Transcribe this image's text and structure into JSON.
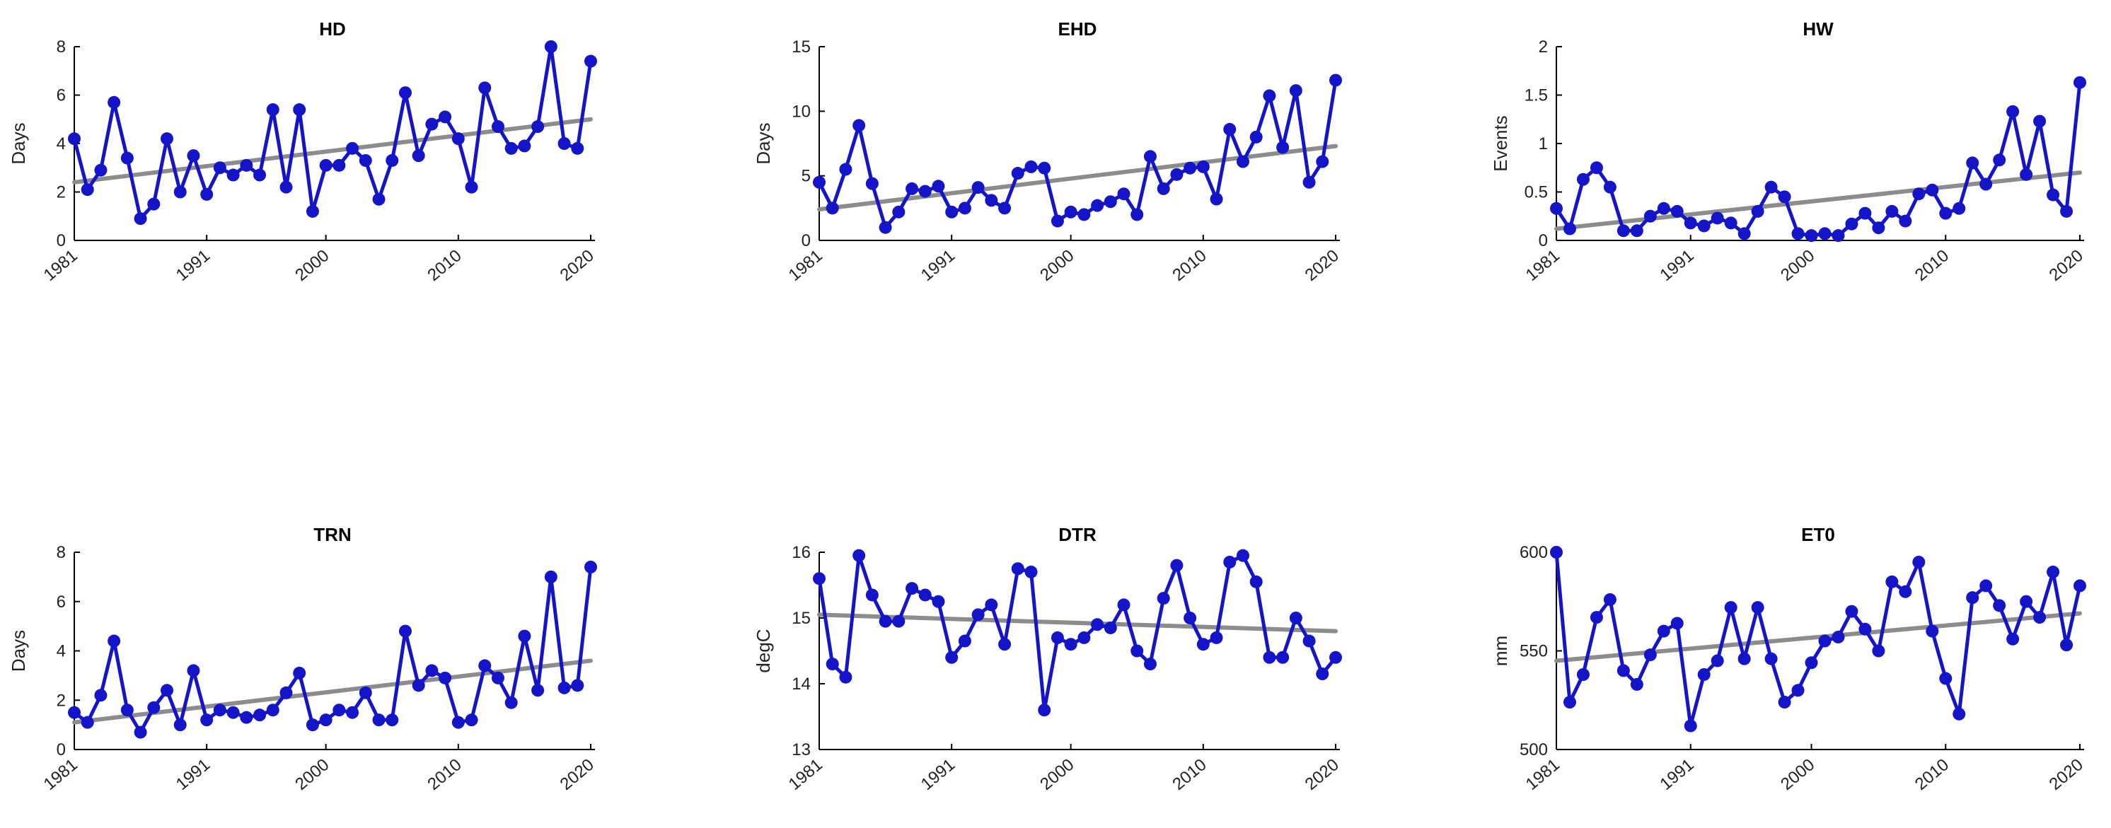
{
  "chart_data": [
    {
      "type": "line",
      "title": "HD",
      "ylabel": "Days",
      "xlabel": "",
      "ylim": [
        0,
        8
      ],
      "yticks": [
        "0",
        "2",
        "4",
        "6",
        "8"
      ],
      "xticks": [
        "1981",
        "1991",
        "2000",
        "2010",
        "2020"
      ],
      "x": [
        1981,
        1982,
        1983,
        1984,
        1985,
        1986,
        1987,
        1988,
        1989,
        1990,
        1991,
        1992,
        1993,
        1994,
        1995,
        1996,
        1997,
        1998,
        1999,
        2000,
        2001,
        2002,
        2003,
        2004,
        2005,
        2006,
        2007,
        2008,
        2009,
        2010,
        2011,
        2012,
        2013,
        2014,
        2015,
        2016,
        2017,
        2018,
        2019,
        2020
      ],
      "series": [
        {
          "values": [
            4.2,
            2.1,
            2.9,
            5.7,
            3.4,
            0.9,
            1.5,
            4.2,
            2.0,
            3.5,
            1.9,
            3.0,
            2.7,
            3.1,
            2.7,
            5.4,
            2.2,
            5.4,
            1.2,
            3.1,
            3.1,
            3.8,
            3.3,
            1.7,
            3.3,
            6.1,
            3.5,
            4.8,
            5.1,
            4.2,
            2.2,
            6.3,
            4.7,
            3.8,
            3.9,
            4.7,
            8.0,
            4.0,
            3.8,
            7.4
          ],
          "color": "#1414c8"
        }
      ],
      "trend": {
        "start": 2.4,
        "end": 5.0,
        "color": "#8c8c8c"
      }
    },
    {
      "type": "line",
      "title": "EHD",
      "ylabel": "Days",
      "xlabel": "",
      "ylim": [
        0,
        15
      ],
      "yticks": [
        "0",
        "5",
        "10",
        "15"
      ],
      "xticks": [
        "1981",
        "1991",
        "2000",
        "2010",
        "2020"
      ],
      "x": [
        1981,
        1982,
        1983,
        1984,
        1985,
        1986,
        1987,
        1988,
        1989,
        1990,
        1991,
        1992,
        1993,
        1994,
        1995,
        1996,
        1997,
        1998,
        1999,
        2000,
        2001,
        2002,
        2003,
        2004,
        2005,
        2006,
        2007,
        2008,
        2009,
        2010,
        2011,
        2012,
        2013,
        2014,
        2015,
        2016,
        2017,
        2018,
        2019,
        2020
      ],
      "series": [
        {
          "values": [
            4.5,
            2.5,
            5.5,
            8.9,
            4.4,
            1.0,
            2.2,
            4.0,
            3.8,
            4.2,
            2.2,
            2.5,
            4.1,
            3.1,
            2.5,
            5.2,
            5.7,
            5.6,
            1.5,
            2.2,
            2.0,
            2.7,
            3.0,
            3.6,
            2.0,
            6.5,
            4.0,
            5.1,
            5.6,
            5.7,
            3.2,
            8.6,
            6.1,
            8.0,
            11.2,
            7.2,
            11.6,
            4.5,
            6.1,
            12.4
          ],
          "color": "#1414c8"
        }
      ],
      "trend": {
        "start": 2.4,
        "end": 7.3,
        "color": "#8c8c8c"
      }
    },
    {
      "type": "line",
      "title": "HW",
      "ylabel": "Events",
      "xlabel": "",
      "ylim": [
        0,
        2
      ],
      "yticks": [
        "0",
        "0.5",
        "1",
        "1.5",
        "2"
      ],
      "xticks": [
        "1981",
        "1991",
        "2000",
        "2010",
        "2020"
      ],
      "x": [
        1981,
        1982,
        1983,
        1984,
        1985,
        1986,
        1987,
        1988,
        1989,
        1990,
        1991,
        1992,
        1993,
        1994,
        1995,
        1996,
        1997,
        1998,
        1999,
        2000,
        2001,
        2002,
        2003,
        2004,
        2005,
        2006,
        2007,
        2008,
        2009,
        2010,
        2011,
        2012,
        2013,
        2014,
        2015,
        2016,
        2017,
        2018,
        2019,
        2020
      ],
      "series": [
        {
          "values": [
            0.33,
            0.12,
            0.63,
            0.75,
            0.55,
            0.1,
            0.1,
            0.25,
            0.33,
            0.3,
            0.18,
            0.15,
            0.23,
            0.18,
            0.07,
            0.3,
            0.55,
            0.45,
            0.07,
            0.05,
            0.07,
            0.05,
            0.17,
            0.28,
            0.13,
            0.3,
            0.2,
            0.48,
            0.52,
            0.28,
            0.33,
            0.8,
            0.58,
            0.83,
            1.33,
            0.68,
            1.23,
            0.47,
            0.3,
            1.63
          ],
          "color": "#1414c8"
        }
      ],
      "trend": {
        "start": 0.12,
        "end": 0.7,
        "color": "#8c8c8c"
      }
    },
    {
      "type": "line",
      "title": "TRN",
      "ylabel": "Days",
      "xlabel": "",
      "ylim": [
        0,
        8
      ],
      "yticks": [
        "0",
        "2",
        "4",
        "6",
        "8"
      ],
      "xticks": [
        "1981",
        "1991",
        "2000",
        "2010",
        "2020"
      ],
      "x": [
        1981,
        1982,
        1983,
        1984,
        1985,
        1986,
        1987,
        1988,
        1989,
        1990,
        1991,
        1992,
        1993,
        1994,
        1995,
        1996,
        1997,
        1998,
        1999,
        2000,
        2001,
        2002,
        2003,
        2004,
        2005,
        2006,
        2007,
        2008,
        2009,
        2010,
        2011,
        2012,
        2013,
        2014,
        2015,
        2016,
        2017,
        2018,
        2019,
        2020
      ],
      "series": [
        {
          "values": [
            1.5,
            1.1,
            2.2,
            4.4,
            1.6,
            0.7,
            1.7,
            2.4,
            1.0,
            3.2,
            1.2,
            1.6,
            1.5,
            1.3,
            1.4,
            1.6,
            2.3,
            3.1,
            1.0,
            1.2,
            1.6,
            1.5,
            2.3,
            1.2,
            1.2,
            4.8,
            2.6,
            3.2,
            2.9,
            1.1,
            1.2,
            3.4,
            2.9,
            1.9,
            4.6,
            2.4,
            7.0,
            2.5,
            2.6,
            7.4
          ],
          "color": "#1414c8"
        }
      ],
      "trend": {
        "start": 1.1,
        "end": 3.6,
        "color": "#8c8c8c"
      }
    },
    {
      "type": "line",
      "title": "DTR",
      "ylabel": "degC",
      "xlabel": "",
      "ylim": [
        13,
        16
      ],
      "yticks": [
        "13",
        "14",
        "15",
        "16"
      ],
      "xticks": [
        "1981",
        "1991",
        "2000",
        "2010",
        "2020"
      ],
      "x": [
        1981,
        1982,
        1983,
        1984,
        1985,
        1986,
        1987,
        1988,
        1989,
        1990,
        1991,
        1992,
        1993,
        1994,
        1995,
        1996,
        1997,
        1998,
        1999,
        2000,
        2001,
        2002,
        2003,
        2004,
        2005,
        2006,
        2007,
        2008,
        2009,
        2010,
        2011,
        2012,
        2013,
        2014,
        2015,
        2016,
        2017,
        2018,
        2019,
        2020
      ],
      "series": [
        {
          "values": [
            15.6,
            14.3,
            14.1,
            15.95,
            15.35,
            14.95,
            14.95,
            15.45,
            15.35,
            15.25,
            14.4,
            14.65,
            15.05,
            15.2,
            14.6,
            15.75,
            15.7,
            13.6,
            14.7,
            14.6,
            14.7,
            14.9,
            14.85,
            15.2,
            14.5,
            14.3,
            15.3,
            15.8,
            15.0,
            14.6,
            14.7,
            15.85,
            15.95,
            15.55,
            14.4,
            14.4,
            15.0,
            14.65,
            14.15,
            14.4
          ],
          "color": "#1414c8"
        }
      ],
      "trend": {
        "start": 15.05,
        "end": 14.8,
        "color": "#8c8c8c"
      }
    },
    {
      "type": "line",
      "title": "ET0",
      "ylabel": "mm",
      "xlabel": "",
      "ylim": [
        500,
        600
      ],
      "yticks": [
        "500",
        "550",
        "600"
      ],
      "xticks": [
        "1981",
        "1991",
        "2000",
        "2010",
        "2020"
      ],
      "x": [
        1981,
        1982,
        1983,
        1984,
        1985,
        1986,
        1987,
        1988,
        1989,
        1990,
        1991,
        1992,
        1993,
        1994,
        1995,
        1996,
        1997,
        1998,
        1999,
        2000,
        2001,
        2002,
        2003,
        2004,
        2005,
        2006,
        2007,
        2008,
        2009,
        2010,
        2011,
        2012,
        2013,
        2014,
        2015,
        2016,
        2017,
        2018,
        2019,
        2020
      ],
      "series": [
        {
          "values": [
            600,
            524,
            538,
            567,
            576,
            540,
            533,
            548,
            560,
            564,
            512,
            538,
            545,
            572,
            546,
            572,
            546,
            524,
            530,
            544,
            555,
            557,
            570,
            561,
            550,
            585,
            580,
            595,
            560,
            536,
            518,
            577,
            583,
            573,
            556,
            575,
            567,
            590,
            553,
            583
          ],
          "color": "#1414c8"
        }
      ],
      "trend": {
        "start": 545,
        "end": 569,
        "color": "#8c8c8c"
      }
    }
  ]
}
